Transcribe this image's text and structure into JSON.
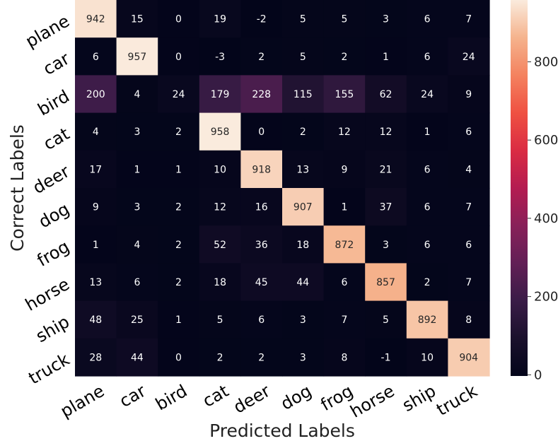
{
  "chart_data": {
    "type": "heatmap",
    "title": "",
    "xlabel": "Predicted Labels",
    "ylabel": "Correct Labels",
    "x_categories": [
      "plane",
      "car",
      "bird",
      "cat",
      "deer",
      "dog",
      "frog",
      "horse",
      "ship",
      "truck"
    ],
    "y_categories": [
      "plane",
      "car",
      "bird",
      "cat",
      "deer",
      "dog",
      "frog",
      "horse",
      "ship",
      "truck"
    ],
    "values": [
      [
        942,
        15,
        0,
        19,
        -2,
        5,
        5,
        3,
        6,
        7
      ],
      [
        6,
        957,
        0,
        -3,
        2,
        5,
        2,
        1,
        6,
        24
      ],
      [
        200,
        4,
        24,
        179,
        228,
        115,
        155,
        62,
        24,
        9
      ],
      [
        4,
        3,
        2,
        958,
        0,
        2,
        12,
        12,
        1,
        6
      ],
      [
        17,
        1,
        1,
        10,
        918,
        13,
        9,
        21,
        6,
        4
      ],
      [
        9,
        3,
        2,
        12,
        16,
        907,
        1,
        37,
        6,
        7
      ],
      [
        1,
        4,
        2,
        52,
        36,
        18,
        872,
        3,
        6,
        6
      ],
      [
        13,
        6,
        2,
        18,
        45,
        44,
        6,
        857,
        2,
        7
      ],
      [
        48,
        25,
        1,
        5,
        6,
        3,
        7,
        5,
        892,
        8
      ],
      [
        28,
        44,
        0,
        2,
        2,
        3,
        8,
        -1,
        10,
        904
      ]
    ],
    "colormap": "rocket",
    "vmin": -3,
    "vmax": 958,
    "colorbar_ticks": [
      0,
      200,
      400,
      600,
      800
    ],
    "annotations": true,
    "grid": false
  }
}
